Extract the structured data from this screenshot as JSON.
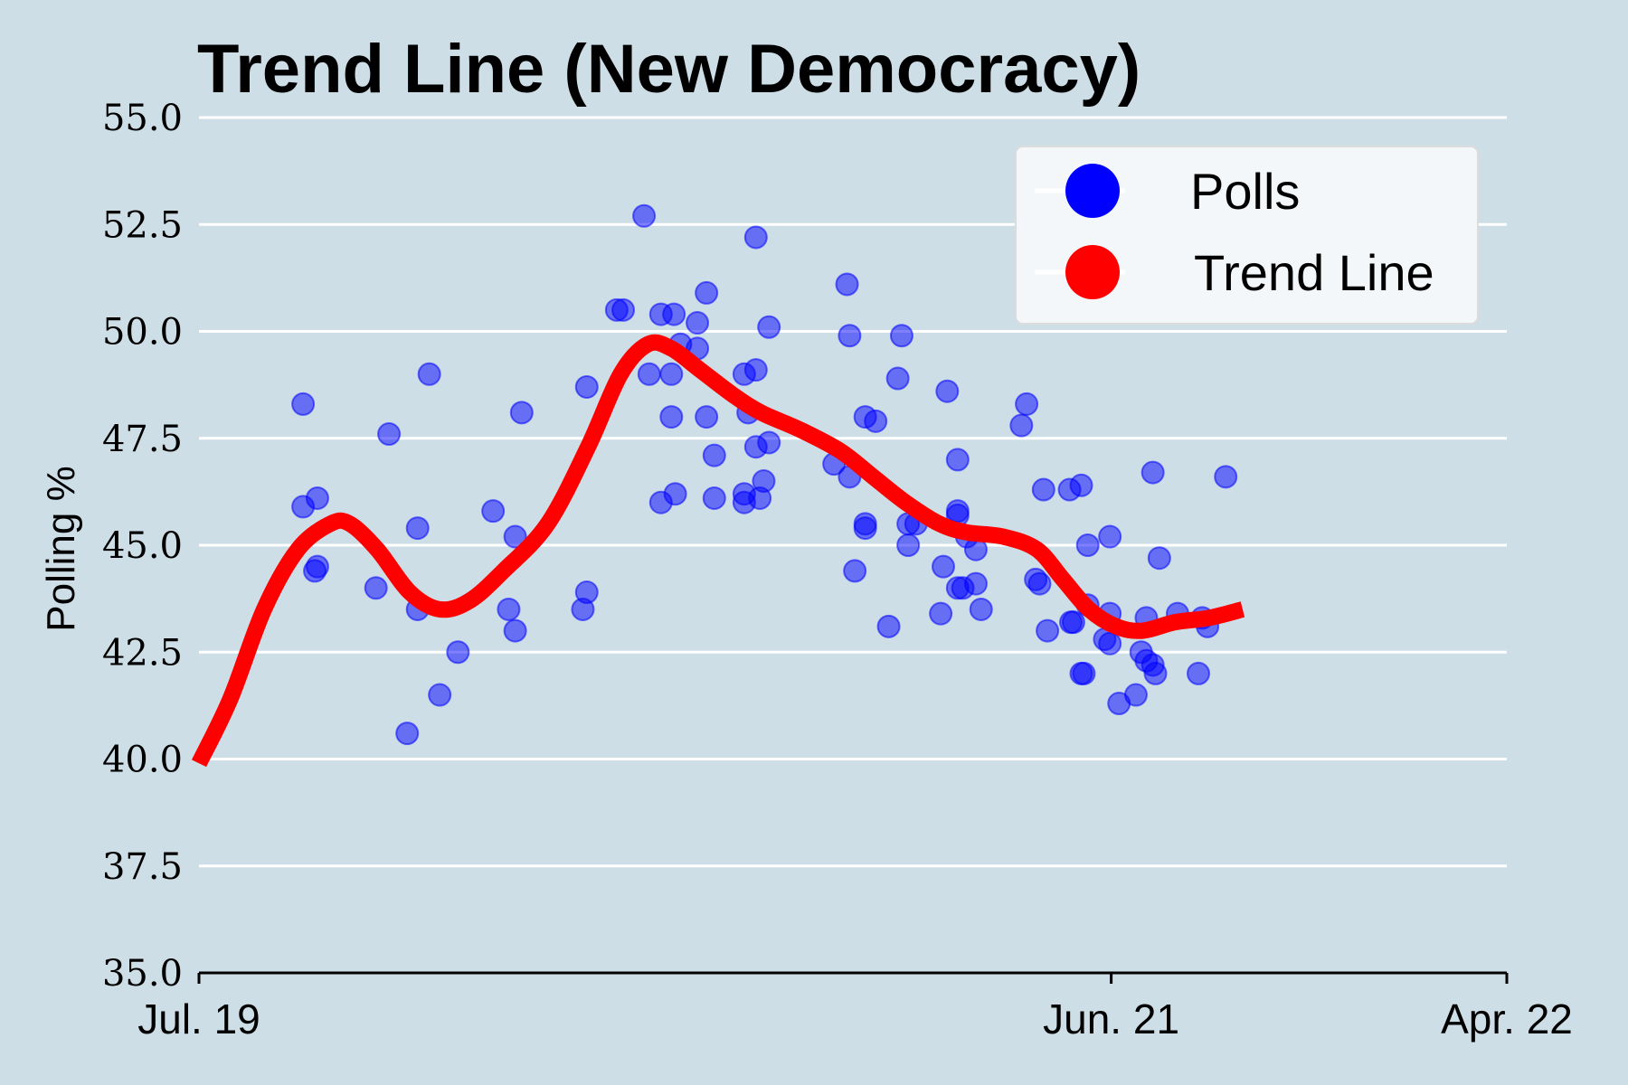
{
  "chart_data": {
    "type": "scatter",
    "title": "Trend Line (New Democracy)",
    "xlabel": "",
    "ylabel": "Polling %",
    "ylim": [
      35.0,
      55.0
    ],
    "yticks": [
      "35.0",
      "37.5",
      "40.0",
      "42.5",
      "45.0",
      "47.5",
      "50.0",
      "52.5",
      "55.0"
    ],
    "xlim": [
      "2019-07-01",
      "2022-04-01"
    ],
    "xticks": [
      {
        "date": "2019-07-01",
        "label": "Jul. 19"
      },
      {
        "date": "2021-06-01",
        "label": "Jun. 21"
      },
      {
        "date": "2022-04-01",
        "label": "Apr. 22"
      }
    ],
    "grid": "horizontal",
    "legend_position": "top-right",
    "colors": {
      "polls": "#0000ff",
      "trend": "#ff0000",
      "background": "#cddee6",
      "grid": "#ffffff"
    },
    "series": [
      {
        "name": "Polls",
        "kind": "scatter",
        "points": [
          {
            "x": "2019-09-19",
            "y": 48.3
          },
          {
            "x": "2019-09-19",
            "y": 45.9
          },
          {
            "x": "2019-09-30",
            "y": 46.1
          },
          {
            "x": "2019-09-30",
            "y": 44.5
          },
          {
            "x": "2019-09-28",
            "y": 44.4
          },
          {
            "x": "2019-11-14",
            "y": 44.0
          },
          {
            "x": "2019-11-24",
            "y": 47.6
          },
          {
            "x": "2019-12-08",
            "y": 40.6
          },
          {
            "x": "2019-12-16",
            "y": 45.4
          },
          {
            "x": "2019-12-16",
            "y": 43.5
          },
          {
            "x": "2019-12-25",
            "y": 49.0
          },
          {
            "x": "2020-01-02",
            "y": 41.5
          },
          {
            "x": "2020-01-16",
            "y": 42.5
          },
          {
            "x": "2020-02-12",
            "y": 45.8
          },
          {
            "x": "2020-02-24",
            "y": 43.5
          },
          {
            "x": "2020-02-29",
            "y": 45.2
          },
          {
            "x": "2020-02-29",
            "y": 43.0
          },
          {
            "x": "2020-03-05",
            "y": 48.1
          },
          {
            "x": "2020-04-21",
            "y": 43.5
          },
          {
            "x": "2020-04-24",
            "y": 43.9
          },
          {
            "x": "2020-04-24",
            "y": 48.7
          },
          {
            "x": "2020-05-17",
            "y": 50.5
          },
          {
            "x": "2020-05-22",
            "y": 50.5
          },
          {
            "x": "2020-06-07",
            "y": 52.7
          },
          {
            "x": "2020-06-11",
            "y": 49.0
          },
          {
            "x": "2020-06-20",
            "y": 50.4
          },
          {
            "x": "2020-06-20",
            "y": 46.0
          },
          {
            "x": "2020-06-30",
            "y": 50.4
          },
          {
            "x": "2020-06-28",
            "y": 49.0
          },
          {
            "x": "2020-06-28",
            "y": 48.0
          },
          {
            "x": "2020-07-01",
            "y": 46.2
          },
          {
            "x": "2020-07-05",
            "y": 49.7
          },
          {
            "x": "2020-07-18",
            "y": 50.2
          },
          {
            "x": "2020-07-18",
            "y": 49.6
          },
          {
            "x": "2020-07-25",
            "y": 50.9
          },
          {
            "x": "2020-07-25",
            "y": 48.0
          },
          {
            "x": "2020-07-31",
            "y": 47.1
          },
          {
            "x": "2020-07-31",
            "y": 46.1
          },
          {
            "x": "2020-08-23",
            "y": 49.0
          },
          {
            "x": "2020-08-23",
            "y": 46.2
          },
          {
            "x": "2020-08-23",
            "y": 46.0
          },
          {
            "x": "2020-08-26",
            "y": 48.1
          },
          {
            "x": "2020-09-01",
            "y": 52.2
          },
          {
            "x": "2020-09-01",
            "y": 49.1
          },
          {
            "x": "2020-09-01",
            "y": 47.3
          },
          {
            "x": "2020-09-04",
            "y": 46.1
          },
          {
            "x": "2020-09-07",
            "y": 46.5
          },
          {
            "x": "2020-09-11",
            "y": 50.1
          },
          {
            "x": "2020-09-11",
            "y": 47.4
          },
          {
            "x": "2020-10-31",
            "y": 46.9
          },
          {
            "x": "2020-11-10",
            "y": 51.1
          },
          {
            "x": "2020-11-12",
            "y": 49.9
          },
          {
            "x": "2020-11-12",
            "y": 46.6
          },
          {
            "x": "2020-11-16",
            "y": 44.4
          },
          {
            "x": "2020-11-24",
            "y": 48.0
          },
          {
            "x": "2020-11-24",
            "y": 45.5
          },
          {
            "x": "2020-11-24",
            "y": 45.4
          },
          {
            "x": "2020-12-02",
            "y": 47.9
          },
          {
            "x": "2020-12-12",
            "y": 43.1
          },
          {
            "x": "2020-12-19",
            "y": 48.9
          },
          {
            "x": "2020-12-22",
            "y": 49.9
          },
          {
            "x": "2020-12-27",
            "y": 45.5
          },
          {
            "x": "2020-12-27",
            "y": 45.0
          },
          {
            "x": "2021-01-02",
            "y": 45.5
          },
          {
            "x": "2021-01-21",
            "y": 43.4
          },
          {
            "x": "2021-01-23",
            "y": 44.5
          },
          {
            "x": "2021-01-26",
            "y": 48.6
          },
          {
            "x": "2021-02-03",
            "y": 47.0
          },
          {
            "x": "2021-02-03",
            "y": 45.8
          },
          {
            "x": "2021-02-03",
            "y": 45.7
          },
          {
            "x": "2021-02-03",
            "y": 44.0
          },
          {
            "x": "2021-02-07",
            "y": 44.0
          },
          {
            "x": "2021-02-10",
            "y": 45.2
          },
          {
            "x": "2021-02-17",
            "y": 44.9
          },
          {
            "x": "2021-02-17",
            "y": 44.1
          },
          {
            "x": "2021-02-21",
            "y": 43.5
          },
          {
            "x": "2021-03-24",
            "y": 47.8
          },
          {
            "x": "2021-03-28",
            "y": 48.3
          },
          {
            "x": "2021-04-04",
            "y": 44.2
          },
          {
            "x": "2021-04-07",
            "y": 44.1
          },
          {
            "x": "2021-04-10",
            "y": 46.3
          },
          {
            "x": "2021-04-13",
            "y": 43.0
          },
          {
            "x": "2021-04-30",
            "y": 46.3
          },
          {
            "x": "2021-05-01",
            "y": 43.2
          },
          {
            "x": "2021-05-03",
            "y": 43.2
          },
          {
            "x": "2021-05-09",
            "y": 46.4
          },
          {
            "x": "2021-05-09",
            "y": 42.0
          },
          {
            "x": "2021-05-11",
            "y": 42.0
          },
          {
            "x": "2021-05-14",
            "y": 45.0
          },
          {
            "x": "2021-05-14",
            "y": 43.6
          },
          {
            "x": "2021-05-27",
            "y": 42.8
          },
          {
            "x": "2021-05-31",
            "y": 45.2
          },
          {
            "x": "2021-05-31",
            "y": 43.4
          },
          {
            "x": "2021-05-31",
            "y": 42.7
          },
          {
            "x": "2021-06-07",
            "y": 41.3
          },
          {
            "x": "2021-06-20",
            "y": 41.5
          },
          {
            "x": "2021-06-24",
            "y": 42.5
          },
          {
            "x": "2021-06-28",
            "y": 43.3
          },
          {
            "x": "2021-06-28",
            "y": 42.3
          },
          {
            "x": "2021-07-03",
            "y": 42.2
          },
          {
            "x": "2021-07-03",
            "y": 46.7
          },
          {
            "x": "2021-07-05",
            "y": 42.0
          },
          {
            "x": "2021-07-08",
            "y": 44.7
          },
          {
            "x": "2021-07-22",
            "y": 43.4
          },
          {
            "x": "2021-08-07",
            "y": 42.0
          },
          {
            "x": "2021-08-10",
            "y": 43.3
          },
          {
            "x": "2021-08-14",
            "y": 43.1
          },
          {
            "x": "2021-08-28",
            "y": 46.6
          }
        ]
      },
      {
        "name": "Trend Line",
        "kind": "line",
        "points": [
          {
            "x": "2019-07-01",
            "y": 39.9
          },
          {
            "x": "2019-07-25",
            "y": 41.4
          },
          {
            "x": "2019-08-20",
            "y": 43.5
          },
          {
            "x": "2019-09-15",
            "y": 44.9
          },
          {
            "x": "2019-10-10",
            "y": 45.5
          },
          {
            "x": "2019-10-25",
            "y": 45.5
          },
          {
            "x": "2019-11-15",
            "y": 44.9
          },
          {
            "x": "2019-12-10",
            "y": 43.9
          },
          {
            "x": "2020-01-02",
            "y": 43.5
          },
          {
            "x": "2020-01-25",
            "y": 43.7
          },
          {
            "x": "2020-02-20",
            "y": 44.4
          },
          {
            "x": "2020-03-25",
            "y": 45.5
          },
          {
            "x": "2020-04-25",
            "y": 47.3
          },
          {
            "x": "2020-05-20",
            "y": 49.0
          },
          {
            "x": "2020-06-10",
            "y": 49.7
          },
          {
            "x": "2020-06-28",
            "y": 49.6
          },
          {
            "x": "2020-07-20",
            "y": 49.1
          },
          {
            "x": "2020-08-15",
            "y": 48.5
          },
          {
            "x": "2020-09-05",
            "y": 48.1
          },
          {
            "x": "2020-10-05",
            "y": 47.7
          },
          {
            "x": "2020-11-05",
            "y": 47.2
          },
          {
            "x": "2020-11-30",
            "y": 46.6
          },
          {
            "x": "2020-12-25",
            "y": 46.0
          },
          {
            "x": "2021-01-20",
            "y": 45.5
          },
          {
            "x": "2021-02-10",
            "y": 45.3
          },
          {
            "x": "2021-03-10",
            "y": 45.2
          },
          {
            "x": "2021-04-05",
            "y": 44.9
          },
          {
            "x": "2021-04-25",
            "y": 44.2
          },
          {
            "x": "2021-05-15",
            "y": 43.5
          },
          {
            "x": "2021-06-05",
            "y": 43.1
          },
          {
            "x": "2021-06-25",
            "y": 43.0
          },
          {
            "x": "2021-07-20",
            "y": 43.2
          },
          {
            "x": "2021-08-15",
            "y": 43.3
          },
          {
            "x": "2021-09-10",
            "y": 43.5
          }
        ]
      }
    ]
  }
}
